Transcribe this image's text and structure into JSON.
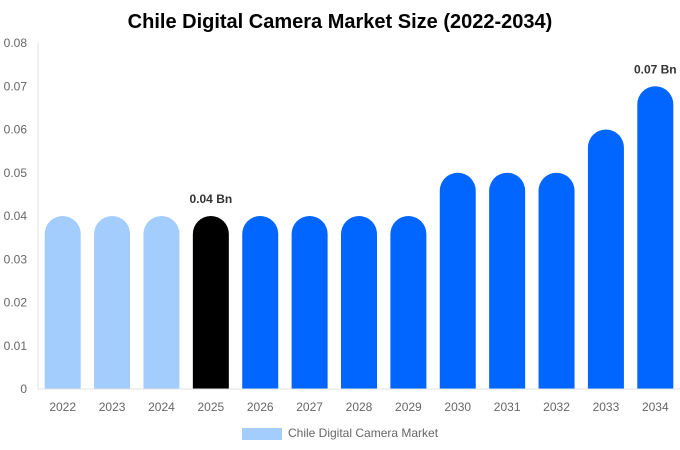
{
  "chart_data": {
    "type": "bar",
    "title": "Chile Digital Camera Market Size (2022-2034)",
    "categories": [
      "2022",
      "2023",
      "2024",
      "2025",
      "2026",
      "2027",
      "2028",
      "2029",
      "2030",
      "2031",
      "2032",
      "2033",
      "2034"
    ],
    "series": [
      {
        "name": "Chile Digital Camera Market",
        "values": [
          0.04,
          0.04,
          0.04,
          0.04,
          0.04,
          0.04,
          0.04,
          0.04,
          0.05,
          0.05,
          0.05,
          0.06,
          0.07
        ]
      }
    ],
    "bar_colors": [
      "#a2cdfd",
      "#a2cdfd",
      "#a2cdfd",
      "#000000",
      "#0066ff",
      "#0066ff",
      "#0066ff",
      "#0066ff",
      "#0066ff",
      "#0066ff",
      "#0066ff",
      "#0066ff",
      "#0066ff"
    ],
    "data_labels": [
      {
        "category": "2025",
        "text": "0.04 Bn"
      },
      {
        "category": "2034",
        "text": "0.07 Bn"
      }
    ],
    "ylim": [
      0,
      0.08
    ],
    "yticks": [
      "0",
      "0.01",
      "0.02",
      "0.03",
      "0.04",
      "0.05",
      "0.06",
      "0.07",
      "0.08"
    ],
    "xlabel": "",
    "ylabel": "",
    "grid": false,
    "legend": {
      "position": "bottom",
      "color": "#a2cdfd"
    }
  }
}
